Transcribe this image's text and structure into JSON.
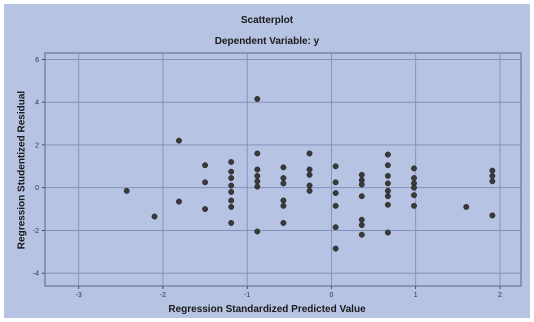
{
  "chart_data": {
    "type": "scatter",
    "title": "Scatterplot",
    "subtitle": "Dependent Variable: y",
    "xlabel": "Regression Standardized Predicted Value",
    "ylabel": "Regression Studentized Residual",
    "xlim": [
      -3.4,
      2.25
    ],
    "ylim": [
      -4.6,
      6.3
    ],
    "xticks": [
      -3,
      -2,
      -1,
      0,
      1,
      2
    ],
    "yticks": [
      -4,
      -2,
      0,
      2,
      4,
      6
    ],
    "grid": true,
    "colors": {
      "background": "#b7c3e3",
      "plot_area": "#b7c3e3",
      "grid": "#7e89b4",
      "points": "#3a3a3a"
    },
    "points": [
      {
        "x": -2.43,
        "y": -0.15
      },
      {
        "x": -2.1,
        "y": -1.35
      },
      {
        "x": -1.81,
        "y": 2.2
      },
      {
        "x": -1.81,
        "y": -0.65
      },
      {
        "x": -1.5,
        "y": 1.05
      },
      {
        "x": -1.5,
        "y": 0.25
      },
      {
        "x": -1.5,
        "y": -1.0
      },
      {
        "x": -1.19,
        "y": 1.2
      },
      {
        "x": -1.19,
        "y": 0.75
      },
      {
        "x": -1.19,
        "y": 0.45
      },
      {
        "x": -1.19,
        "y": 0.1
      },
      {
        "x": -1.19,
        "y": -0.2
      },
      {
        "x": -1.19,
        "y": -0.6
      },
      {
        "x": -1.19,
        "y": -0.9
      },
      {
        "x": -1.19,
        "y": -1.65
      },
      {
        "x": -0.88,
        "y": 4.15
      },
      {
        "x": -0.88,
        "y": 1.6
      },
      {
        "x": -0.88,
        "y": 0.85
      },
      {
        "x": -0.88,
        "y": 0.55
      },
      {
        "x": -0.88,
        "y": 0.3
      },
      {
        "x": -0.88,
        "y": 0.05
      },
      {
        "x": -0.88,
        "y": -2.05
      },
      {
        "x": -0.57,
        "y": 0.95
      },
      {
        "x": -0.57,
        "y": 0.45
      },
      {
        "x": -0.57,
        "y": 0.2
      },
      {
        "x": -0.57,
        "y": -0.6
      },
      {
        "x": -0.57,
        "y": -0.85
      },
      {
        "x": -0.57,
        "y": -1.65
      },
      {
        "x": -0.26,
        "y": 1.6
      },
      {
        "x": -0.26,
        "y": 0.85
      },
      {
        "x": -0.26,
        "y": 0.6
      },
      {
        "x": -0.26,
        "y": 0.1
      },
      {
        "x": -0.26,
        "y": -0.15
      },
      {
        "x": 0.05,
        "y": 1.0
      },
      {
        "x": 0.05,
        "y": 0.25
      },
      {
        "x": 0.05,
        "y": -0.25
      },
      {
        "x": 0.05,
        "y": -0.85
      },
      {
        "x": 0.05,
        "y": -1.85
      },
      {
        "x": 0.05,
        "y": -2.85
      },
      {
        "x": 0.36,
        "y": 0.6
      },
      {
        "x": 0.36,
        "y": 0.35
      },
      {
        "x": 0.36,
        "y": 0.15
      },
      {
        "x": 0.36,
        "y": -0.4
      },
      {
        "x": 0.36,
        "y": -1.5
      },
      {
        "x": 0.36,
        "y": -1.75
      },
      {
        "x": 0.36,
        "y": -2.2
      },
      {
        "x": 0.67,
        "y": 1.55
      },
      {
        "x": 0.67,
        "y": 1.05
      },
      {
        "x": 0.67,
        "y": 0.55
      },
      {
        "x": 0.67,
        "y": 0.2
      },
      {
        "x": 0.67,
        "y": -0.15
      },
      {
        "x": 0.67,
        "y": -0.4
      },
      {
        "x": 0.67,
        "y": -0.8
      },
      {
        "x": 0.67,
        "y": -2.1
      },
      {
        "x": 0.98,
        "y": 0.9
      },
      {
        "x": 0.98,
        "y": 0.45
      },
      {
        "x": 0.98,
        "y": 0.2
      },
      {
        "x": 0.98,
        "y": 0.0
      },
      {
        "x": 0.98,
        "y": -0.35
      },
      {
        "x": 0.98,
        "y": -0.85
      },
      {
        "x": 1.6,
        "y": -0.9
      },
      {
        "x": 1.91,
        "y": 0.8
      },
      {
        "x": 1.91,
        "y": 0.55
      },
      {
        "x": 1.91,
        "y": 0.3
      },
      {
        "x": 1.91,
        "y": -1.3
      }
    ]
  }
}
